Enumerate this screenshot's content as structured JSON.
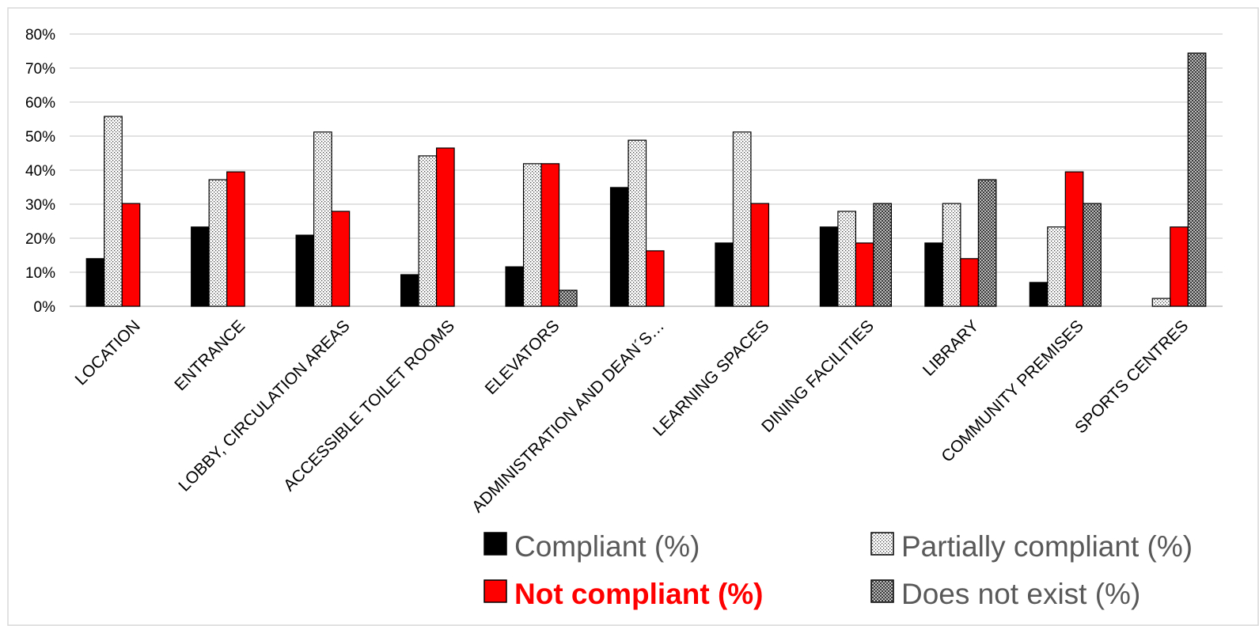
{
  "chart_data": {
    "type": "bar",
    "title": "",
    "xlabel": "",
    "ylabel": "",
    "ylim": [
      0,
      0.8
    ],
    "yticks": [
      "0%",
      "10%",
      "20%",
      "30%",
      "40%",
      "50%",
      "60%",
      "70%",
      "80%"
    ],
    "grid": "horizontal",
    "legend_position": "bottom-right",
    "categories": [
      "LOCATION",
      "ENTRANCE",
      "LOBBY, CIRCULATION AREAS",
      "ACCESSIBLE TOILET ROOMS",
      "ELEVATORS",
      "ADMINISTRATION AND DEAN´S…",
      "LEARNING SPACES",
      "DINING FACILITIES",
      "LIBRARY",
      "COMMUNITY PREMISES",
      "SPORTS CENTRES"
    ],
    "series": [
      {
        "name": "Compliant (%)",
        "fill": "solid-black",
        "color": "#000000",
        "values": [
          0.14,
          0.233,
          0.209,
          0.093,
          0.116,
          0.349,
          0.186,
          0.233,
          0.186,
          0.07,
          null
        ]
      },
      {
        "name": "Partially compliant (%)",
        "fill": "dotted",
        "color": "#ffffff",
        "values": [
          0.558,
          0.372,
          0.512,
          0.442,
          0.419,
          0.488,
          0.512,
          0.279,
          0.302,
          0.233,
          0.023
        ]
      },
      {
        "name": "Not compliant (%)",
        "fill": "solid-red",
        "color": "#ff0000",
        "values": [
          0.302,
          0.395,
          0.279,
          0.465,
          0.419,
          0.163,
          0.302,
          0.186,
          0.14,
          0.395,
          0.233
        ]
      },
      {
        "name": "Does not exist (%)",
        "fill": "checkered-gray",
        "color": "#808080",
        "values": [
          null,
          null,
          null,
          null,
          0.047,
          null,
          null,
          0.302,
          0.372,
          0.302,
          0.744
        ]
      }
    ]
  }
}
